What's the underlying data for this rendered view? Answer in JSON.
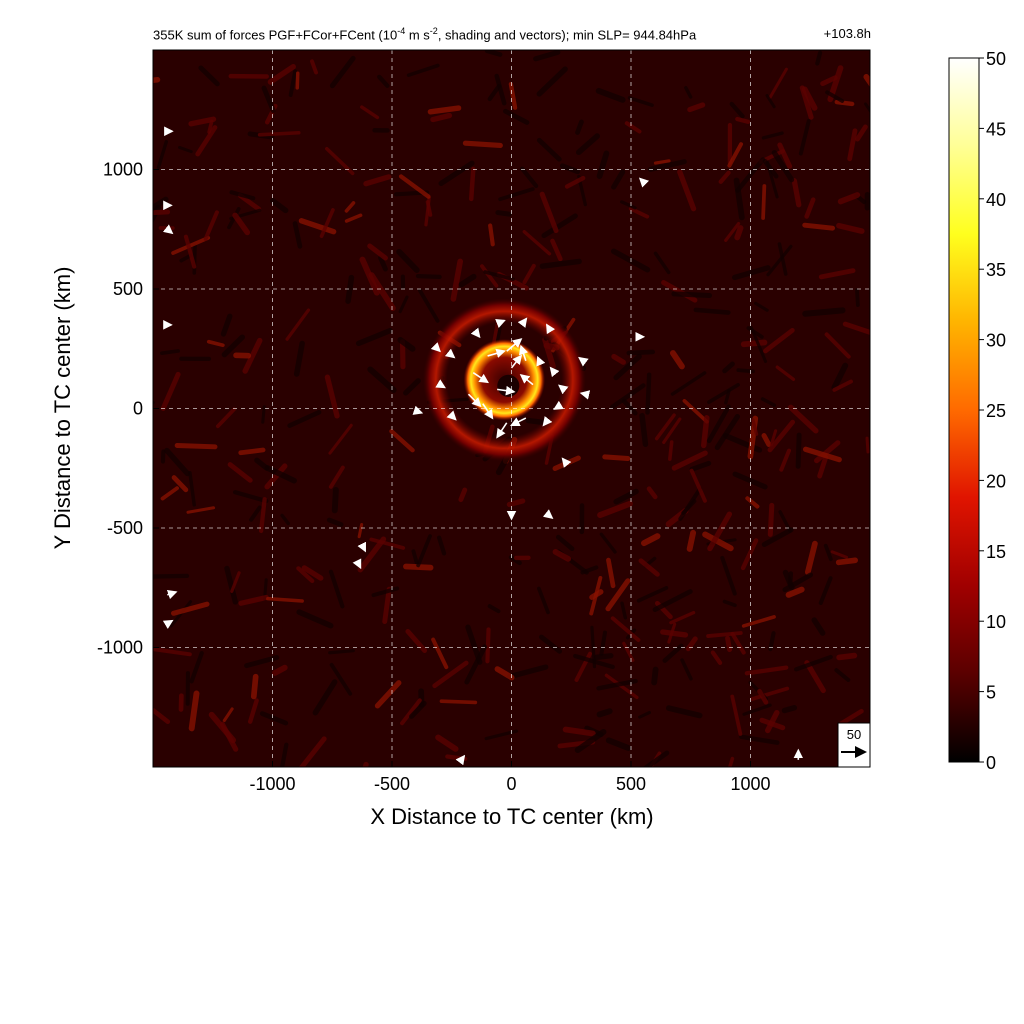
{
  "title": {
    "prefix": "355K sum of forces PGF+FCor+FCent (10",
    "exponent1": "-4",
    "middle": " m s",
    "exponent2": "-2",
    "suffix": ", shading and vectors); min SLP= 944.84hPa",
    "valid_time": "+103.8h"
  },
  "reference_vector": {
    "label": "50"
  },
  "colors": {
    "colormap": [
      "#000000",
      "#5a0000",
      "#a00000",
      "#e01400",
      "#ff6a00",
      "#ffb400",
      "#ffff1e",
      "#ffff96",
      "#ffffff"
    ],
    "grid": "#ffffff",
    "vectors": "#ffffff"
  },
  "chart_data": {
    "type": "heatmap",
    "xlabel": "X Distance to TC center (km)",
    "ylabel": "Y Distance to TC center (km)",
    "xlim": [
      -1500,
      1500
    ],
    "ylim": [
      -1500,
      1500
    ],
    "xticks": [
      -1000,
      -500,
      0,
      500,
      1000
    ],
    "yticks": [
      -1000,
      -500,
      0,
      500,
      1000
    ],
    "xtick_labels": [
      "-1000",
      "-500",
      "0",
      "500",
      "1000"
    ],
    "ytick_labels": [
      "-1000",
      "-500",
      "0",
      "500",
      "1000"
    ],
    "grid": true,
    "colorbar": {
      "range": [
        0,
        50
      ],
      "ticks": [
        0,
        5,
        10,
        15,
        20,
        25,
        30,
        35,
        40,
        45,
        50
      ],
      "tick_labels": [
        "0",
        "5",
        "10",
        "15",
        "20",
        "25",
        "30",
        "35",
        "40",
        "45",
        "50"
      ],
      "placement": "right"
    },
    "field": {
      "description_of_structure": "spiral eyewall ring of strong forces near the TC center over a noisy background",
      "background_level": 5,
      "eyewall_peak": 45,
      "eyewall_radius_km": 110,
      "eyewall_center_km": [
        -30,
        120
      ],
      "outer_band_level": 15
    },
    "vectors": {
      "reference_magnitude": 50,
      "samples": [
        {
          "x": -160,
          "y": 150,
          "u": 30,
          "v": -20
        },
        {
          "x": -100,
          "y": 220,
          "u": 35,
          "v": 10
        },
        {
          "x": -20,
          "y": 240,
          "u": 30,
          "v": 25
        },
        {
          "x": 60,
          "y": 200,
          "u": -10,
          "v": 30
        },
        {
          "x": 90,
          "y": 100,
          "u": -25,
          "v": 20
        },
        {
          "x": 60,
          "y": -40,
          "u": -30,
          "v": -15
        },
        {
          "x": -20,
          "y": -60,
          "u": -20,
          "v": -30
        },
        {
          "x": -120,
          "y": 20,
          "u": 20,
          "v": -30
        },
        {
          "x": -180,
          "y": 60,
          "u": 25,
          "v": -25
        },
        {
          "x": -60,
          "y": 80,
          "u": 35,
          "v": -5
        },
        {
          "x": 0,
          "y": 170,
          "u": 20,
          "v": 25
        },
        {
          "x": 120,
          "y": 190,
          "u": -5,
          "v": 12
        },
        {
          "x": 180,
          "y": 150,
          "u": -8,
          "v": 10
        },
        {
          "x": 220,
          "y": 80,
          "u": -10,
          "v": 8
        },
        {
          "x": 200,
          "y": 10,
          "u": -10,
          "v": -6
        },
        {
          "x": 150,
          "y": -50,
          "u": -8,
          "v": -10
        },
        {
          "x": -260,
          "y": 230,
          "u": 10,
          "v": -8
        },
        {
          "x": -300,
          "y": 100,
          "u": 10,
          "v": -6
        },
        {
          "x": -250,
          "y": -30,
          "u": 8,
          "v": -8
        },
        {
          "x": -150,
          "y": 320,
          "u": 8,
          "v": -10
        },
        {
          "x": -50,
          "y": 360,
          "u": 10,
          "v": 4
        },
        {
          "x": 50,
          "y": 360,
          "u": 6,
          "v": 8
        },
        {
          "x": 160,
          "y": 330,
          "u": -6,
          "v": 10
        },
        {
          "x": 300,
          "y": 200,
          "u": -8,
          "v": 6
        },
        {
          "x": 310,
          "y": 60,
          "u": -9,
          "v": 2
        },
        {
          "x": -320,
          "y": 260,
          "u": 10,
          "v": -10
        },
        {
          "x": -400,
          "y": -10,
          "u": 12,
          "v": -4
        },
        {
          "x": 230,
          "y": -230,
          "u": -8,
          "v": 10
        },
        {
          "x": -620,
          "y": -580,
          "u": 4,
          "v": -8
        },
        {
          "x": -640,
          "y": -650,
          "u": 4,
          "v": -8
        },
        {
          "x": 550,
          "y": 950,
          "u": -6,
          "v": 6
        },
        {
          "x": 1200,
          "y": -1470,
          "u": 0,
          "v": 20
        },
        {
          "x": -210,
          "y": -1470,
          "u": 6,
          "v": 8
        },
        {
          "x": -1440,
          "y": -780,
          "u": 18,
          "v": 6
        },
        {
          "x": -1440,
          "y": -900,
          "u": 10,
          "v": 6
        },
        {
          "x": -1440,
          "y": 750,
          "u": 10,
          "v": -8
        },
        {
          "x": -1440,
          "y": 1160,
          "u": 10,
          "v": 0
        },
        {
          "x": -1440,
          "y": 850,
          "u": 8,
          "v": 0
        },
        {
          "x": -1440,
          "y": 350,
          "u": 8,
          "v": 0
        },
        {
          "x": 0,
          "y": -450,
          "u": 0,
          "v": -6
        },
        {
          "x": 160,
          "y": -450,
          "u": 5,
          "v": -4
        },
        {
          "x": 540,
          "y": 300,
          "u": 6,
          "v": 0
        }
      ]
    }
  }
}
